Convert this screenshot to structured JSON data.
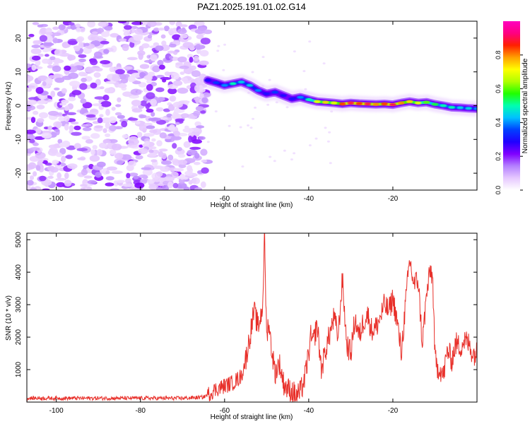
{
  "title": "PAZ1.2025.191.01.02.G14",
  "chart_data": [
    {
      "type": "heatmap",
      "xlabel": "Height of straight line (km)",
      "ylabel": "Frequency (Hz)",
      "xlim": [
        -107,
        0
      ],
      "ylim": [
        -25,
        25
      ],
      "xticks": [
        -100,
        -80,
        -60,
        -40,
        -20
      ],
      "yticks": [
        -20,
        -10,
        0,
        10,
        20
      ],
      "colorbar": {
        "label": "Normalized spectral amplitude",
        "range": [
          0,
          1
        ],
        "ticks": [
          0.0,
          0.2,
          0.4,
          0.6,
          0.8
        ],
        "colormap": [
          "#ffffff",
          "#e6c8ff",
          "#b480ff",
          "#8000ff",
          "#2000ff",
          "#0040ff",
          "#00c0ff",
          "#00ffb0",
          "#20ff00",
          "#b0ff00",
          "#ffff00",
          "#ffa000",
          "#ff2000",
          "#ff0080",
          "#ff00c0"
        ]
      },
      "noise_region": {
        "x_range": [
          -107,
          -64
        ],
        "freq_range": [
          -25,
          25
        ],
        "amplitude_range": [
          0.0,
          0.15
        ]
      },
      "signal_track": {
        "x": [
          -64,
          -62,
          -60,
          -58,
          -56,
          -54,
          -52,
          -50,
          -48,
          -46,
          -44,
          -42,
          -40,
          -38,
          -36,
          -34,
          -32,
          -30,
          -28,
          -26,
          -24,
          -22,
          -20,
          -18,
          -16,
          -14,
          -12,
          -10,
          -8,
          -6,
          -4,
          -2,
          0
        ],
        "freq": [
          7.5,
          6.8,
          6.0,
          6.5,
          7.0,
          6.0,
          4.5,
          3.5,
          4.0,
          3.0,
          2.0,
          2.5,
          1.8,
          1.2,
          1.0,
          0.8,
          0.5,
          0.8,
          0.6,
          0.5,
          0.4,
          0.5,
          0.3,
          0.8,
          1.2,
          0.8,
          1.0,
          0.4,
          0.0,
          -0.5,
          -0.6,
          -0.8,
          -0.9
        ],
        "amplitude": [
          0.3,
          0.35,
          0.4,
          0.5,
          0.45,
          0.45,
          0.4,
          0.3,
          0.35,
          0.3,
          0.3,
          0.4,
          0.5,
          0.7,
          0.75,
          0.7,
          0.85,
          0.9,
          0.85,
          0.9,
          0.8,
          0.85,
          0.9,
          0.8,
          0.75,
          0.7,
          0.6,
          0.55,
          0.5,
          0.5,
          0.45,
          0.45,
          0.4
        ]
      }
    },
    {
      "type": "line",
      "xlabel": "Height of straight line (km)",
      "ylabel": "SNR (10 * v/v)",
      "xlim": [
        -107,
        0
      ],
      "ylim": [
        0,
        5200
      ],
      "xticks": [
        -100,
        -80,
        -60,
        -40,
        -20
      ],
      "yticks": [
        1000,
        2000,
        3000,
        4000,
        5000
      ],
      "series": [
        {
          "color": "#e8302a",
          "x": [
            -107,
            -90,
            -70,
            -65,
            -62,
            -60,
            -58,
            -56,
            -55,
            -54,
            -53,
            -52,
            -51,
            -50.5,
            -50,
            -49.5,
            -49,
            -48,
            -47,
            -46,
            -45,
            -44,
            -43,
            -42,
            -41,
            -40,
            -39.5,
            -39,
            -38,
            -37,
            -36,
            -35,
            -34,
            -33,
            -32,
            -31,
            -30,
            -29,
            -28,
            -27,
            -26,
            -25,
            -24,
            -23,
            -22,
            -21,
            -20,
            -19,
            -18,
            -17,
            -16,
            -15,
            -14,
            -13,
            -12,
            -11,
            -10.5,
            -10,
            -9.5,
            -9,
            -8,
            -7,
            -6,
            -5,
            -4,
            -3,
            -2,
            -1,
            0
          ],
          "y": [
            120,
            120,
            120,
            150,
            400,
            500,
            600,
            800,
            1300,
            2000,
            2800,
            2300,
            2900,
            5100,
            2000,
            2500,
            1800,
            900,
            1200,
            600,
            400,
            350,
            200,
            300,
            700,
            1500,
            2000,
            1800,
            2400,
            1000,
            1600,
            2100,
            2600,
            2000,
            3800,
            1800,
            1500,
            2600,
            2000,
            2500,
            2700,
            2200,
            2300,
            2600,
            3000,
            2800,
            3200,
            2500,
            1500,
            3000,
            4400,
            3600,
            3800,
            1800,
            3300,
            4100,
            3700,
            1400,
            1000,
            1100,
            800,
            1600,
            1300,
            1800,
            1700,
            1900,
            1800,
            1500,
            1500
          ]
        }
      ]
    }
  ]
}
